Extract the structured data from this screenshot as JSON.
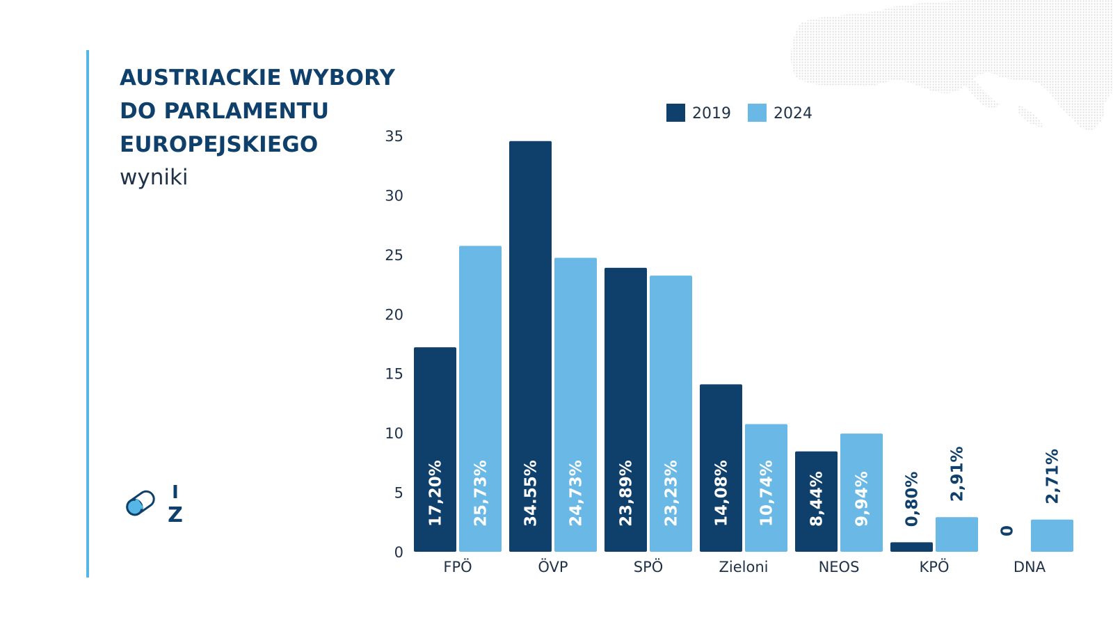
{
  "header": {
    "title_lines": [
      "AUSTRIACKIE WYBORY",
      "DO PARLAMENTU",
      "EUROPEJSKIEGO"
    ],
    "subtitle": "wyniki"
  },
  "logo": {
    "icon": "capsule-logo-icon",
    "letters": [
      "I",
      "Z"
    ]
  },
  "background": {
    "decoration": "dotted-europe-map"
  },
  "colors": {
    "dark_series": "#0f3f6b",
    "light_series": "#69b8e5",
    "accent_line": "#56b6e6",
    "text": "#1e3147"
  },
  "chart_data": {
    "type": "bar",
    "title": "",
    "xlabel": "",
    "ylabel": "",
    "categories": [
      "FPÖ",
      "ÖVP",
      "SPÖ",
      "Zieloni",
      "NEOS",
      "KPÖ",
      "DNA"
    ],
    "series": [
      {
        "name": "2019",
        "values": [
          17.2,
          34.55,
          23.89,
          14.08,
          8.44,
          0.8,
          0
        ],
        "labels": [
          "17,20%",
          "34.55%",
          "23,89%",
          "14,08%",
          "8,44%",
          "0,80%",
          "0"
        ]
      },
      {
        "name": "2024",
        "values": [
          25.73,
          24.73,
          23.23,
          10.74,
          9.94,
          2.91,
          2.71
        ],
        "labels": [
          "25,73%",
          "24,73%",
          "23,23%",
          "10,74%",
          "9,94%",
          "2,91%",
          "2,71%"
        ]
      }
    ],
    "ylim": [
      0,
      35
    ],
    "yticks": [
      0,
      5,
      10,
      15,
      20,
      25,
      30,
      35
    ],
    "grid": false,
    "legend": "top"
  }
}
